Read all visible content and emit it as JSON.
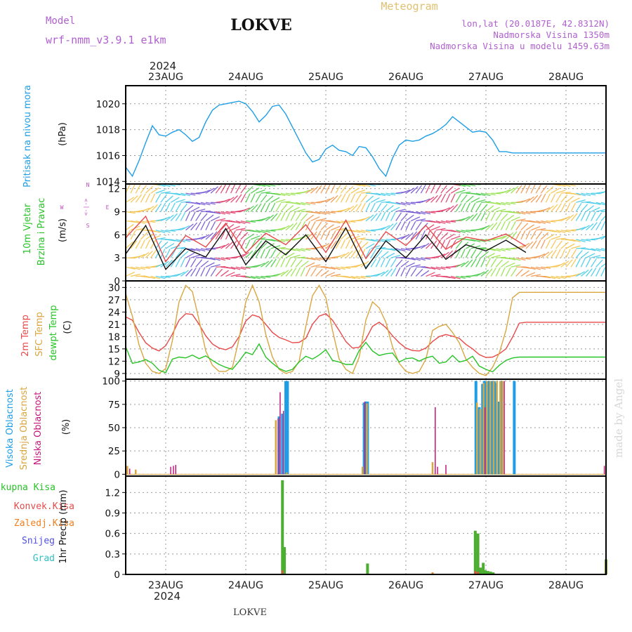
{
  "header": {
    "model_label": "Model",
    "model_name": "wrf-nmm_v3.9.1 e1km",
    "station": "LOKVE",
    "meteogram": "Meteogram",
    "coords": "lon,lat (20.0187E, 42.8312N)",
    "altitude": "Nadmorska Visina 1350m",
    "model_altitude": "Nadmorska Visina u modelu 1459.63m"
  },
  "time_axis": {
    "year": "2024",
    "days": [
      "23AUG",
      "24AUG",
      "25AUG",
      "26AUG",
      "27AUG",
      "28AUG"
    ]
  },
  "footer": {
    "station": "LOKVE"
  },
  "watermark": "made by Angel",
  "colors": {
    "pressure": "#1e9ee6",
    "temp2m": "#e84a4a",
    "sfc": "#d9a640",
    "dewpt": "#27c427",
    "high_cloud": "#1e9ee6",
    "mid_cloud": "#d9a640",
    "low_cloud": "#c2187a",
    "total_precip": "#4cae30",
    "conv_precip": "#e84a4a",
    "frz_precip": "#f08020",
    "snow": "#5050e0",
    "hail": "#30c0c0",
    "wind_dir_legend": "#c050c0"
  },
  "chart_data": [
    {
      "id": "pressure",
      "type": "line",
      "ylabel": [
        "Pritisak na nivou mora",
        "(hPa)"
      ],
      "yticks": [
        1014,
        1016,
        1018,
        1020
      ],
      "ylim": [
        1013.8,
        1021.4
      ],
      "series": [
        {
          "x": [
            0,
            2,
            4,
            6,
            8,
            10,
            12,
            14,
            16,
            18,
            20,
            22,
            24,
            26,
            28,
            30,
            32,
            34,
            36,
            38,
            40,
            42,
            44,
            46,
            48,
            50,
            52,
            54,
            56,
            58,
            60,
            62,
            64,
            66,
            68,
            70,
            72,
            74,
            76,
            78,
            80,
            82,
            84,
            86,
            88,
            90,
            92,
            94,
            96,
            98,
            100,
            102,
            104,
            106,
            108,
            110,
            112,
            114,
            116,
            118,
            120,
            122,
            124,
            126,
            128,
            130,
            132,
            134,
            136,
            138,
            140,
            142,
            144
          ],
          "values": [
            1015.1,
            1014.4,
            1015.6,
            1017.0,
            1018.3,
            1017.6,
            1017.5,
            1017.8,
            1018.0,
            1017.6,
            1017.1,
            1017.4,
            1018.6,
            1019.5,
            1019.9,
            1020.0,
            1020.1,
            1020.2,
            1020.0,
            1019.4,
            1018.6,
            1019.1,
            1019.8,
            1019.9,
            1019.2,
            1018.2,
            1017.2,
            1016.2,
            1015.5,
            1015.7,
            1016.5,
            1016.8,
            1016.4,
            1016.3,
            1016.0,
            1016.7,
            1016.6,
            1015.9,
            1015.0,
            1014.4,
            1015.8,
            1016.8,
            1017.2,
            1017.1,
            1017.2,
            1017.5,
            1017.7,
            1018.0,
            1018.4,
            1019.0,
            1018.6,
            1018.2,
            1017.8,
            1017.9,
            1017.8,
            1017.2,
            1016.3,
            1016.3,
            1016.2,
            1016.2,
            1016.2,
            1016.2,
            1016.2,
            1016.2,
            1016.2,
            1016.2,
            1016.2,
            1016.2,
            1016.2,
            1016.2,
            1016.2,
            1016.2,
            1016.2
          ]
        }
      ]
    },
    {
      "id": "wind",
      "type": "line",
      "ylabel": [
        "10m Vjetar",
        "Brzina i Pravac",
        "(m/s)"
      ],
      "direction_legend": [
        "N",
        "<-|->",
        "E",
        "W",
        "S"
      ],
      "yticks": [
        0,
        3,
        6,
        9,
        12
      ],
      "ylim": [
        0,
        12.6
      ],
      "series": [
        {
          "name": "wind speed",
          "x": [
            0,
            6,
            12,
            18,
            24,
            30,
            36,
            42,
            48,
            54,
            60,
            66,
            72,
            78,
            84,
            90,
            96,
            102,
            108,
            114,
            120
          ],
          "values": [
            3.5,
            7.2,
            1.5,
            4.2,
            3.1,
            6.8,
            2.1,
            5.2,
            3.4,
            6.0,
            2.5,
            6.9,
            1.6,
            5.2,
            3.0,
            6.0,
            2.8,
            4.7,
            3.9,
            5.3,
            3.7
          ]
        },
        {
          "name": "gust",
          "x": [
            0,
            6,
            12,
            18,
            24,
            30,
            36,
            42,
            48,
            54,
            60,
            66,
            72,
            78,
            84,
            90,
            96,
            102,
            108,
            114,
            120
          ],
          "values": [
            5.6,
            8.4,
            2.5,
            5.9,
            4.4,
            7.5,
            3.6,
            6.2,
            4.7,
            7.3,
            3.7,
            7.9,
            2.9,
            6.4,
            4.6,
            7.2,
            4.1,
            5.7,
            5.2,
            6.1,
            4.5
          ]
        }
      ]
    },
    {
      "id": "temperature",
      "type": "line",
      "ylabel": [
        "2m Temp",
        "SFC Temp",
        "dewpt Temp",
        "(C)"
      ],
      "yticks": [
        9,
        12,
        15,
        18,
        21,
        24,
        27,
        30
      ],
      "ylim": [
        7.6,
        31.6
      ],
      "series": [
        {
          "name": "2m Temp",
          "x": [
            0,
            2,
            4,
            6,
            8,
            10,
            12,
            14,
            16,
            18,
            20,
            22,
            24,
            26,
            28,
            30,
            32,
            34,
            36,
            38,
            40,
            42,
            44,
            46,
            48,
            50,
            52,
            54,
            56,
            58,
            60,
            62,
            64,
            66,
            68,
            70,
            72,
            74,
            76,
            78,
            80,
            82,
            84,
            86,
            88,
            90,
            92,
            94,
            96,
            98,
            100,
            102,
            104,
            106,
            108,
            110,
            112,
            114,
            116,
            118,
            120,
            122,
            124,
            126,
            128,
            130,
            132,
            134,
            136,
            138,
            140,
            142,
            144
          ],
          "values": [
            22.8,
            22.0,
            19.0,
            16.5,
            15.2,
            14.5,
            15.8,
            18.6,
            22.0,
            23.6,
            23.4,
            21.0,
            18.2,
            16.2,
            15.2,
            14.8,
            15.5,
            18.0,
            21.8,
            23.3,
            22.8,
            21.0,
            19.0,
            17.8,
            17.2,
            16.5,
            16.6,
            17.6,
            21.0,
            23.0,
            23.6,
            22.0,
            19.5,
            16.8,
            15.2,
            15.4,
            17.4,
            20.5,
            21.5,
            20.2,
            18.2,
            16.5,
            15.2,
            14.6,
            14.5,
            15.2,
            16.8,
            18.0,
            18.5,
            18.1,
            17.6,
            16.1,
            15.0,
            13.6,
            12.9,
            13.0,
            13.8,
            15.0,
            17.9,
            21.3,
            21.5,
            21.5,
            21.5,
            21.5,
            21.5,
            21.5,
            21.5,
            21.5,
            21.5,
            21.5,
            21.5,
            21.5,
            21.5
          ]
        },
        {
          "name": "SFC Temp",
          "x": [
            0,
            2,
            4,
            6,
            8,
            10,
            12,
            14,
            16,
            18,
            20,
            22,
            24,
            26,
            28,
            30,
            32,
            34,
            36,
            38,
            40,
            42,
            44,
            46,
            48,
            50,
            52,
            54,
            56,
            58,
            60,
            62,
            64,
            66,
            68,
            70,
            72,
            74,
            76,
            78,
            80,
            82,
            84,
            86,
            88,
            90,
            92,
            94,
            96,
            98,
            100,
            102,
            104,
            106,
            108,
            110,
            112,
            114,
            116,
            118,
            120,
            122,
            124,
            126,
            128,
            130,
            132,
            134,
            136,
            138,
            140,
            142,
            144
          ],
          "values": [
            28.5,
            23.0,
            16.0,
            11.5,
            9.5,
            9.0,
            10.2,
            17.0,
            26.5,
            30.5,
            29.0,
            22.0,
            14.5,
            11.0,
            9.5,
            9.5,
            10.5,
            17.5,
            26.5,
            30.5,
            26.5,
            18.5,
            13.0,
            10.0,
            9.0,
            9.5,
            12.0,
            20.5,
            28.0,
            30.5,
            27.5,
            19.5,
            12.5,
            10.0,
            9.0,
            13.0,
            22.0,
            26.5,
            25.0,
            21.5,
            15.5,
            11.5,
            9.5,
            9.0,
            9.5,
            12.5,
            19.5,
            20.5,
            21.0,
            19.0,
            16.5,
            12.5,
            10.5,
            9.0,
            8.5,
            10.5,
            14.0,
            19.5,
            27.5,
            28.8,
            28.8,
            28.8,
            28.8,
            28.8,
            28.8,
            28.8,
            28.8,
            28.8,
            28.8,
            28.8,
            28.8,
            28.8,
            28.8
          ]
        },
        {
          "name": "dewpt Temp",
          "x": [
            0,
            2,
            4,
            6,
            8,
            10,
            12,
            14,
            16,
            18,
            20,
            22,
            24,
            26,
            28,
            30,
            32,
            34,
            36,
            38,
            40,
            42,
            44,
            46,
            48,
            50,
            52,
            54,
            56,
            58,
            60,
            62,
            64,
            66,
            68,
            70,
            72,
            74,
            76,
            78,
            80,
            82,
            84,
            86,
            88,
            90,
            92,
            94,
            96,
            98,
            100,
            102,
            104,
            106,
            108,
            110,
            112,
            114,
            116,
            118,
            120,
            122,
            124,
            126,
            128,
            130,
            132,
            134,
            136,
            138,
            140,
            142,
            144
          ],
          "values": [
            15.5,
            11.5,
            11.8,
            12.4,
            11.5,
            9.8,
            9.2,
            12.5,
            13.0,
            12.8,
            13.5,
            12.6,
            13.3,
            12.2,
            11.2,
            10.5,
            10.0,
            12.0,
            14.2,
            13.6,
            16.2,
            13.0,
            11.5,
            10.2,
            9.5,
            10.0,
            11.8,
            13.2,
            12.5,
            13.5,
            14.8,
            12.2,
            11.8,
            11.2,
            11.2,
            14.6,
            16.6,
            14.5,
            13.4,
            13.8,
            14.0,
            11.8,
            12.6,
            12.8,
            12.0,
            12.8,
            13.2,
            11.5,
            11.8,
            13.4,
            11.8,
            12.2,
            13.2,
            10.8,
            10.0,
            9.4,
            11.0,
            12.2,
            12.8,
            13.0,
            13.0,
            13.0,
            13.0,
            13.0,
            13.0,
            13.0,
            13.0,
            13.0,
            13.0,
            13.0,
            13.0,
            13.0,
            13.0
          ]
        }
      ]
    },
    {
      "id": "clouds",
      "type": "bar",
      "ylabel": [
        "Visoka Oblacnost",
        "Srednja Oblacnost",
        "Niska Oblacnost",
        "(%)"
      ],
      "yticks": [
        0,
        25,
        50,
        75,
        100
      ],
      "ylim": [
        -2,
        102
      ],
      "series": [
        {
          "name": "Visoka Oblacnost",
          "x": [
            46,
            47,
            48,
            48.5,
            71.5,
            72,
            72.5,
            105,
            106,
            107,
            107.5,
            108,
            108.5,
            109,
            109.5,
            110,
            110.5,
            111,
            112,
            112.5,
            116.5
          ],
          "values": [
            62,
            65,
            100,
            100,
            77,
            78,
            78,
            100,
            72,
            97,
            100,
            100,
            100,
            100,
            100,
            100,
            100,
            98,
            78,
            100,
            100
          ]
        },
        {
          "name": "Srednja Oblacnost",
          "x": [
            0.5,
            3,
            45,
            48.3,
            71,
            72.3,
            92,
            105.3,
            106.3,
            107.3,
            108.3,
            109.3,
            110.3,
            111.3,
            112.3,
            113
          ],
          "values": [
            9,
            5,
            58,
            2,
            8,
            76,
            13,
            77,
            70,
            98,
            100,
            100,
            100,
            100,
            100,
            100
          ]
        },
        {
          "name": "Niska Oblacnost",
          "x": [
            1.2,
            13.5,
            14.3,
            15,
            45.7,
            46.3,
            47.3,
            71.7,
            92.8,
            93.5,
            96,
            107.7,
            113.5,
            143.5,
            144
          ],
          "values": [
            6,
            8,
            9,
            10,
            60,
            88,
            68,
            78,
            72,
            8,
            10,
            72,
            100,
            9,
            9
          ]
        }
      ]
    },
    {
      "id": "precip",
      "type": "bar",
      "ylabel": [
        "Ukupna Kisa",
        "Konvek.Kisa",
        "Zaledj.Kisa",
        "Snijeg",
        "Grad",
        "1hr Precip (mm)"
      ],
      "yticks": [
        0,
        0.3,
        0.6,
        0.9,
        1.2
      ],
      "ylim": [
        0,
        1.44
      ],
      "series": [
        {
          "name": "Ukupna Kisa",
          "x": [
            47,
            47.6,
            72.5,
            104.8,
            105.6,
            106.4,
            107.2,
            107.8,
            108.6,
            109.4,
            110.2,
            144
          ],
          "values": [
            1.38,
            0.4,
            0.16,
            0.64,
            0.6,
            0.1,
            0.17,
            0.06,
            0.05,
            0.04,
            0.03,
            0.22
          ]
        },
        {
          "name": "Konvek.Kisa",
          "x": [
            47,
            104.8,
            105.6,
            144
          ],
          "values": [
            0.06,
            0.05,
            0.04,
            0.2
          ]
        },
        {
          "name": "Zaledj.Kisa",
          "x": [
            92
          ],
          "values": [
            0.03
          ]
        },
        {
          "name": "Snijeg",
          "x": [],
          "values": []
        },
        {
          "name": "Grad",
          "x": [],
          "values": []
        }
      ]
    }
  ]
}
